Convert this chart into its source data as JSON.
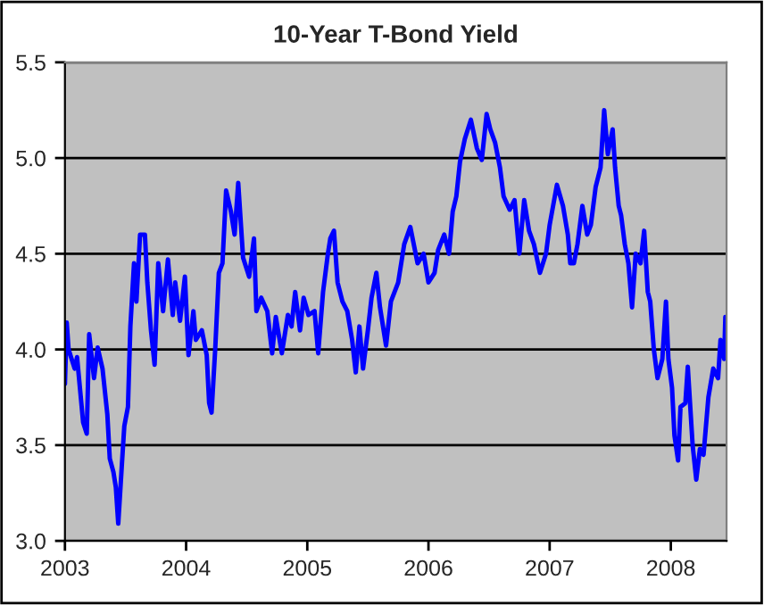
{
  "chart_data": {
    "type": "line",
    "title": "10-Year T-Bond Yield",
    "xlim": [
      2003,
      2008.46
    ],
    "xticks": [
      2003,
      2004,
      2005,
      2006,
      2007,
      2008
    ],
    "ylim": [
      3.0,
      5.5
    ],
    "yticks": [
      {
        "value": 3.0,
        "label": "3.0"
      },
      {
        "value": 3.5,
        "label": "3.5"
      },
      {
        "value": 4.0,
        "label": "4.0"
      },
      {
        "value": 4.5,
        "label": "4.5"
      },
      {
        "value": 5.0,
        "label": "5.0"
      },
      {
        "value": 5.5,
        "label": "5.5"
      }
    ],
    "grid": "y",
    "marker": "none",
    "line_style": "solid",
    "series": [
      {
        "color": "#0000ff",
        "x": [
          2003.0,
          2003.015,
          2003.03,
          2003.08,
          2003.1,
          2003.15,
          2003.18,
          2003.2,
          2003.24,
          2003.27,
          2003.31,
          2003.35,
          2003.37,
          2003.4,
          2003.42,
          2003.44,
          2003.47,
          2003.49,
          2003.52,
          2003.54,
          2003.57,
          2003.59,
          2003.62,
          2003.66,
          2003.68,
          2003.71,
          2003.74,
          2003.77,
          2003.81,
          2003.85,
          2003.89,
          2003.91,
          2003.95,
          2003.99,
          2004.02,
          2004.06,
          2004.08,
          2004.13,
          2004.17,
          2004.19,
          2004.21,
          2004.24,
          2004.27,
          2004.3,
          2004.33,
          2004.37,
          2004.4,
          2004.43,
          2004.47,
          2004.52,
          2004.56,
          2004.58,
          2004.62,
          2004.67,
          2004.71,
          2004.74,
          2004.79,
          2004.84,
          2004.87,
          2004.9,
          2004.94,
          2004.97,
          2005.01,
          2005.06,
          2005.09,
          2005.13,
          2005.17,
          2005.19,
          2005.22,
          2005.25,
          2005.29,
          2005.33,
          2005.37,
          2005.4,
          2005.43,
          2005.46,
          2005.5,
          2005.53,
          2005.57,
          2005.6,
          2005.65,
          2005.69,
          2005.75,
          2005.8,
          2005.85,
          2005.91,
          2005.96,
          2006.0,
          2006.05,
          2006.08,
          2006.13,
          2006.17,
          2006.2,
          2006.23,
          2006.26,
          2006.3,
          2006.35,
          2006.4,
          2006.44,
          2006.48,
          2006.51,
          2006.55,
          2006.59,
          2006.62,
          2006.67,
          2006.71,
          2006.75,
          2006.79,
          2006.83,
          2006.87,
          2006.92,
          2006.97,
          2007.0,
          2007.06,
          2007.11,
          2007.15,
          2007.17,
          2007.2,
          2007.23,
          2007.27,
          2007.31,
          2007.34,
          2007.38,
          2007.42,
          2007.45,
          2007.48,
          2007.52,
          2007.54,
          2007.57,
          2007.59,
          2007.62,
          2007.65,
          2007.68,
          2007.71,
          2007.75,
          2007.78,
          2007.81,
          2007.83,
          2007.86,
          2007.89,
          2007.93,
          2007.96,
          2007.98,
          2008.01,
          2008.03,
          2008.06,
          2008.08,
          2008.12,
          2008.14,
          2008.18,
          2008.21,
          2008.24,
          2008.27,
          2008.31,
          2008.35,
          2008.39,
          2008.41,
          2008.44,
          2008.45
        ],
        "values": [
          3.82,
          4.14,
          4.0,
          3.9,
          3.96,
          3.62,
          3.56,
          4.08,
          3.85,
          4.01,
          3.9,
          3.66,
          3.43,
          3.36,
          3.28,
          3.09,
          3.4,
          3.6,
          3.7,
          4.12,
          4.45,
          4.25,
          4.6,
          4.6,
          4.35,
          4.1,
          3.92,
          4.45,
          4.2,
          4.47,
          4.18,
          4.35,
          4.15,
          4.38,
          3.97,
          4.2,
          4.05,
          4.1,
          3.97,
          3.72,
          3.67,
          4.0,
          4.4,
          4.45,
          4.83,
          4.72,
          4.6,
          4.87,
          4.48,
          4.38,
          4.58,
          4.2,
          4.27,
          4.2,
          3.98,
          4.17,
          3.98,
          4.18,
          4.12,
          4.3,
          4.1,
          4.27,
          4.18,
          4.2,
          3.98,
          4.3,
          4.5,
          4.58,
          4.62,
          4.35,
          4.25,
          4.2,
          4.05,
          3.88,
          4.12,
          3.9,
          4.1,
          4.27,
          4.4,
          4.22,
          4.02,
          4.25,
          4.35,
          4.55,
          4.64,
          4.45,
          4.5,
          4.35,
          4.4,
          4.52,
          4.6,
          4.5,
          4.72,
          4.8,
          4.98,
          5.1,
          5.2,
          5.05,
          4.99,
          5.23,
          5.15,
          5.08,
          4.95,
          4.8,
          4.73,
          4.78,
          4.5,
          4.78,
          4.62,
          4.55,
          4.4,
          4.5,
          4.65,
          4.86,
          4.75,
          4.6,
          4.45,
          4.45,
          4.55,
          4.75,
          4.6,
          4.65,
          4.85,
          4.95,
          5.25,
          5.02,
          5.15,
          4.95,
          4.75,
          4.7,
          4.55,
          4.45,
          4.22,
          4.5,
          4.45,
          4.62,
          4.3,
          4.25,
          4.0,
          3.85,
          3.95,
          4.25,
          3.95,
          3.8,
          3.55,
          3.42,
          3.7,
          3.72,
          3.91,
          3.5,
          3.32,
          3.48,
          3.45,
          3.75,
          3.9,
          3.85,
          4.05,
          3.95,
          4.17
        ]
      }
    ]
  }
}
